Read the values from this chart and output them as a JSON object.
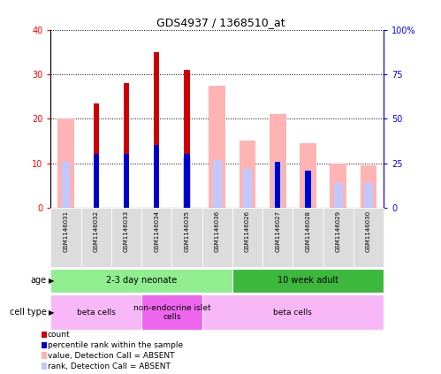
{
  "title": "GDS4937 / 1368510_at",
  "samples": [
    "GSM1146031",
    "GSM1146032",
    "GSM1146033",
    "GSM1146034",
    "GSM1146035",
    "GSM1146036",
    "GSM1146026",
    "GSM1146027",
    "GSM1146028",
    "GSM1146029",
    "GSM1146030"
  ],
  "count_values": [
    0,
    23.5,
    28,
    35,
    31,
    0,
    0,
    0,
    0,
    0,
    0
  ],
  "rank_values_pct": [
    0,
    30,
    30,
    35,
    30,
    0,
    0,
    26,
    21,
    0,
    0
  ],
  "absent_value_values": [
    20,
    0,
    0,
    0,
    0,
    27.5,
    15,
    21,
    14.5,
    10,
    9.5
  ],
  "absent_rank_values_pct": [
    26,
    0,
    0,
    0,
    28,
    27,
    22,
    26,
    20,
    14,
    14
  ],
  "age_groups": [
    {
      "label": "2-3 day neonate",
      "start": 0,
      "end": 6,
      "color": "#90EE90"
    },
    {
      "label": "10 week adult",
      "start": 6,
      "end": 11,
      "color": "#3CB93C"
    }
  ],
  "cell_type_groups": [
    {
      "label": "beta cells",
      "start": 0,
      "end": 3,
      "color": "#F8B8F8"
    },
    {
      "label": "non-endocrine islet\ncells",
      "start": 3,
      "end": 5,
      "color": "#EE66EE"
    },
    {
      "label": "beta cells",
      "start": 5,
      "end": 11,
      "color": "#F8B8F8"
    }
  ],
  "left_ylim": [
    0,
    40
  ],
  "right_ylim": [
    0,
    100
  ],
  "left_yticks": [
    0,
    10,
    20,
    30,
    40
  ],
  "right_yticks": [
    0,
    25,
    50,
    75,
    100
  ],
  "left_yticklabels": [
    "0",
    "10",
    "20",
    "30",
    "40"
  ],
  "right_yticklabels": [
    "0",
    "25",
    "50",
    "75",
    "100%"
  ],
  "color_count": "#CC0000",
  "color_rank": "#0000CC",
  "color_absent_value": "#FFB3B3",
  "color_absent_rank": "#C0C8FF",
  "n_samples": 11
}
